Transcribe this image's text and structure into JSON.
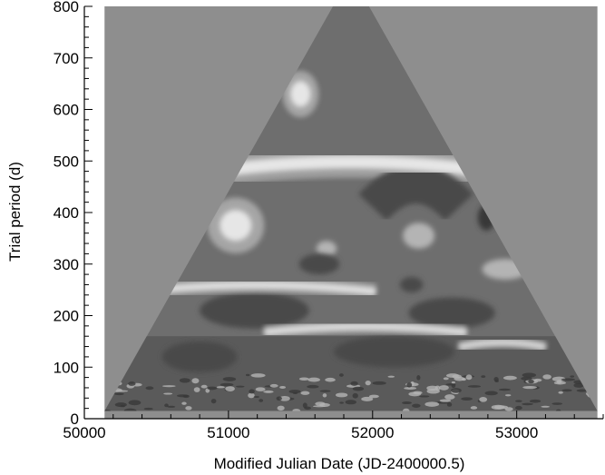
{
  "chart_data": {
    "type": "heatmap",
    "title": "",
    "xlabel": "Modified Julian Date (JD-2400000.5)",
    "ylabel": "Trial period (d)",
    "xlim": [
      50000,
      53600
    ],
    "ylim": [
      0,
      800
    ],
    "x_ticks": [
      {
        "value": 50000,
        "label": "50000"
      },
      {
        "value": 51000,
        "label": "51000"
      },
      {
        "value": 52000,
        "label": "52000"
      },
      {
        "value": 53000,
        "label": "53000"
      }
    ],
    "x_minor_step": 200,
    "y_ticks": [
      {
        "value": 0,
        "label": "0"
      },
      {
        "value": 100,
        "label": "100"
      },
      {
        "value": 200,
        "label": "200"
      },
      {
        "value": 300,
        "label": "300"
      },
      {
        "value": 400,
        "label": "400"
      },
      {
        "value": 500,
        "label": "500"
      },
      {
        "value": 600,
        "label": "600"
      },
      {
        "value": 700,
        "label": "700"
      },
      {
        "value": 800,
        "label": "800"
      }
    ],
    "y_minor_step": 20,
    "data_region": {
      "x_range": [
        50140,
        53560
      ],
      "period_min": 15,
      "cone_apex": {
        "x": 51850,
        "period": 800
      },
      "cone_base": {
        "x_left": 50140,
        "x_right": 53560,
        "period": 15
      }
    },
    "colors": {
      "outside_cone": "#8e8e8e",
      "background_level": "#6e6e6e",
      "low_level": "#4a4a4a",
      "lowest_level": "#383838",
      "high_level": "#b4b4b4",
      "peak_level": "#e6e6e6"
    },
    "features": [
      {
        "kind": "band",
        "x_center": 51850,
        "period": 490,
        "x_halfwidth": 1100,
        "period_halfwidth": 14,
        "level": "high"
      },
      {
        "kind": "band",
        "x_center": 52300,
        "period": 440,
        "x_halfwidth": 300,
        "period_halfwidth": 25,
        "level": "low"
      },
      {
        "kind": "blob",
        "x": 51500,
        "period": 630,
        "rx": 70,
        "rperiod": 25,
        "level": "peak"
      },
      {
        "kind": "blob",
        "x": 51050,
        "period": 375,
        "rx": 110,
        "rperiod": 30,
        "level": "peak"
      },
      {
        "kind": "blob",
        "x": 51680,
        "period": 330,
        "rx": 70,
        "rperiod": 15,
        "level": "high"
      },
      {
        "kind": "blob",
        "x": 52320,
        "period": 355,
        "rx": 110,
        "rperiod": 25,
        "level": "high"
      },
      {
        "kind": "blob",
        "x": 52920,
        "period": 290,
        "rx": 160,
        "rperiod": 20,
        "level": "high"
      },
      {
        "kind": "blob",
        "x": 51630,
        "period": 300,
        "rx": 140,
        "rperiod": 20,
        "level": "low"
      },
      {
        "kind": "blob",
        "x": 52790,
        "period": 390,
        "rx": 60,
        "rperiod": 25,
        "level": "lowest"
      },
      {
        "kind": "blob",
        "x": 52270,
        "period": 260,
        "rx": 80,
        "rperiod": 15,
        "level": "low"
      },
      {
        "kind": "blob",
        "x": 51180,
        "period": 210,
        "rx": 380,
        "rperiod": 35,
        "level": "low"
      },
      {
        "kind": "blob",
        "x": 52550,
        "period": 205,
        "rx": 300,
        "rperiod": 30,
        "level": "low"
      },
      {
        "kind": "blob",
        "x": 50800,
        "period": 120,
        "rx": 260,
        "rperiod": 30,
        "level": "low"
      },
      {
        "kind": "blob",
        "x": 52150,
        "period": 130,
        "rx": 420,
        "rperiod": 30,
        "level": "low"
      },
      {
        "kind": "band",
        "x_center": 51200,
        "period": 255,
        "x_halfwidth": 820,
        "period_halfwidth": 7,
        "level": "high"
      },
      {
        "kind": "band",
        "x_center": 51950,
        "period": 175,
        "x_halfwidth": 700,
        "period_halfwidth": 6,
        "level": "high"
      },
      {
        "kind": "band",
        "x_center": 52900,
        "period": 145,
        "x_halfwidth": 300,
        "period_halfwidth": 5,
        "level": "high"
      }
    ]
  }
}
